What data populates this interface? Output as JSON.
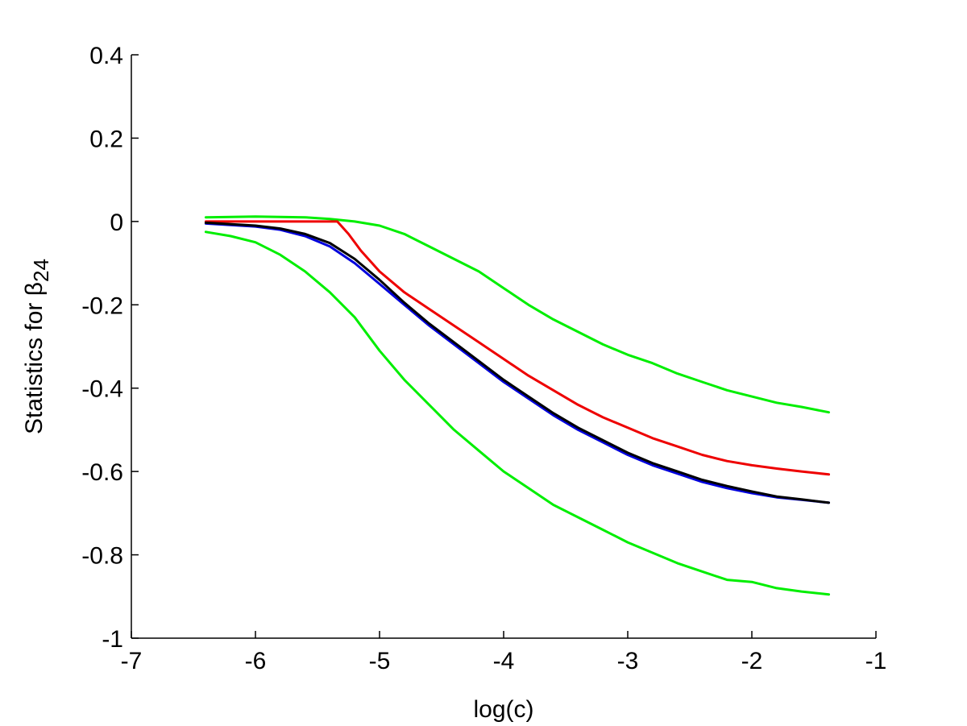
{
  "chart_data": {
    "type": "line",
    "title": "",
    "xlabel": "log(c)",
    "ylabel_prefix": "Statistics for ",
    "ylabel_symbol": "β",
    "ylabel_subscript": "24",
    "xlim": [
      -7,
      -1
    ],
    "ylim": [
      -1,
      0.4
    ],
    "xticks": [
      -7,
      -6,
      -5,
      -4,
      -3,
      -2,
      -1
    ],
    "xtick_labels": [
      "-7",
      "-6",
      "-5",
      "-4",
      "-3",
      "-2",
      "-1"
    ],
    "yticks": [
      -1,
      -0.8,
      -0.6,
      -0.4,
      -0.2,
      0,
      0.2,
      0.4
    ],
    "ytick_labels": [
      "-1",
      "-0.8",
      "-0.6",
      "-0.4",
      "-0.2",
      "0",
      "0.2",
      "0.4"
    ],
    "grid": false,
    "legend": "none",
    "series": [
      {
        "color": "#00ee00",
        "x": [
          -6.4,
          -6.0,
          -5.6,
          -5.4,
          -5.2,
          -5.0,
          -4.8,
          -4.6,
          -4.4,
          -4.2,
          -4.0,
          -3.8,
          -3.6,
          -3.4,
          -3.2,
          -3.0,
          -2.8,
          -2.6,
          -2.4,
          -2.2,
          -2.0,
          -1.8,
          -1.6,
          -1.38
        ],
        "y": [
          0.01,
          0.012,
          0.01,
          0.006,
          0.0,
          -0.01,
          -0.03,
          -0.06,
          -0.09,
          -0.12,
          -0.16,
          -0.2,
          -0.235,
          -0.265,
          -0.295,
          -0.32,
          -0.34,
          -0.365,
          -0.385,
          -0.405,
          -0.42,
          -0.435,
          -0.445,
          -0.458
        ]
      },
      {
        "color": "#00ee00",
        "x": [
          -6.4,
          -6.2,
          -6.0,
          -5.8,
          -5.6,
          -5.4,
          -5.2,
          -5.0,
          -4.8,
          -4.6,
          -4.4,
          -4.2,
          -4.0,
          -3.8,
          -3.6,
          -3.4,
          -3.2,
          -3.0,
          -2.8,
          -2.6,
          -2.4,
          -2.2,
          -2.0,
          -1.8,
          -1.6,
          -1.38
        ],
        "y": [
          -0.025,
          -0.035,
          -0.05,
          -0.08,
          -0.12,
          -0.17,
          -0.23,
          -0.31,
          -0.38,
          -0.44,
          -0.5,
          -0.55,
          -0.6,
          -0.64,
          -0.68,
          -0.71,
          -0.74,
          -0.77,
          -0.795,
          -0.82,
          -0.84,
          -0.86,
          -0.865,
          -0.88,
          -0.888,
          -0.895
        ]
      },
      {
        "color": "#ee0000",
        "x": [
          -6.4,
          -6.0,
          -5.6,
          -5.34,
          -5.25,
          -5.15,
          -5.0,
          -4.8,
          -4.6,
          -4.4,
          -4.2,
          -4.0,
          -3.8,
          -3.6,
          -3.4,
          -3.2,
          -3.0,
          -2.8,
          -2.6,
          -2.4,
          -2.2,
          -2.0,
          -1.8,
          -1.6,
          -1.38
        ],
        "y": [
          0.0,
          0.0,
          0.0,
          0.0,
          -0.03,
          -0.07,
          -0.12,
          -0.17,
          -0.21,
          -0.25,
          -0.29,
          -0.33,
          -0.37,
          -0.405,
          -0.44,
          -0.47,
          -0.495,
          -0.52,
          -0.54,
          -0.56,
          -0.575,
          -0.585,
          -0.593,
          -0.6,
          -0.607
        ]
      },
      {
        "color": "#0000dd",
        "x": [
          -6.4,
          -6.0,
          -5.8,
          -5.6,
          -5.4,
          -5.2,
          -5.0,
          -4.8,
          -4.6,
          -4.4,
          -4.2,
          -4.0,
          -3.8,
          -3.6,
          -3.4,
          -3.2,
          -3.0,
          -2.8,
          -2.6,
          -2.4,
          -2.2,
          -2.0,
          -1.8,
          -1.6,
          -1.38
        ],
        "y": [
          -0.005,
          -0.012,
          -0.02,
          -0.035,
          -0.06,
          -0.1,
          -0.15,
          -0.2,
          -0.25,
          -0.295,
          -0.34,
          -0.385,
          -0.425,
          -0.465,
          -0.5,
          -0.53,
          -0.56,
          -0.585,
          -0.605,
          -0.625,
          -0.64,
          -0.652,
          -0.662,
          -0.668,
          -0.675
        ]
      },
      {
        "color": "#000000",
        "x": [
          -6.4,
          -6.0,
          -5.8,
          -5.6,
          -5.4,
          -5.2,
          -5.0,
          -4.8,
          -4.6,
          -4.4,
          -4.2,
          -4.0,
          -3.8,
          -3.6,
          -3.4,
          -3.2,
          -3.0,
          -2.8,
          -2.6,
          -2.4,
          -2.2,
          -2.0,
          -1.8,
          -1.6,
          -1.38
        ],
        "y": [
          -0.003,
          -0.01,
          -0.017,
          -0.03,
          -0.052,
          -0.09,
          -0.14,
          -0.195,
          -0.245,
          -0.29,
          -0.335,
          -0.38,
          -0.42,
          -0.46,
          -0.495,
          -0.525,
          -0.555,
          -0.58,
          -0.6,
          -0.62,
          -0.635,
          -0.648,
          -0.66,
          -0.667,
          -0.675
        ]
      }
    ]
  }
}
